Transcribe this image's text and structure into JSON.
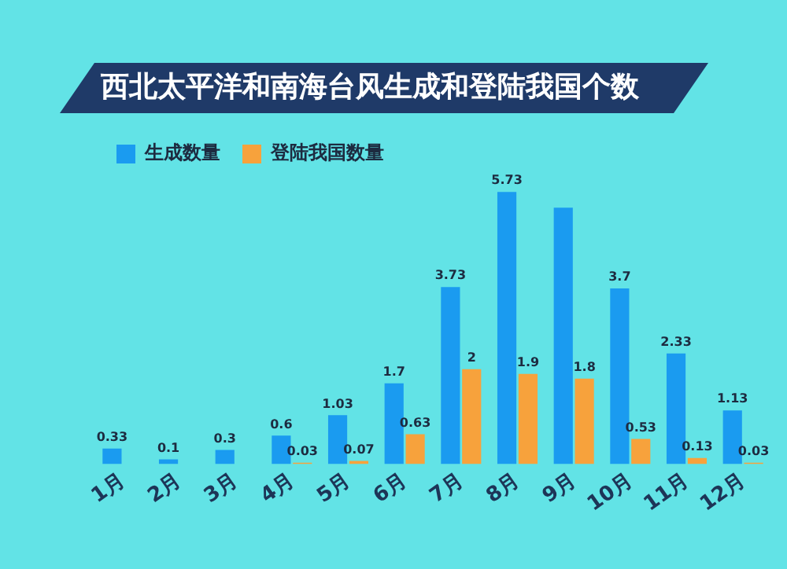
{
  "chart_data": {
    "type": "bar",
    "title": "西北太平洋和南海台风生成和登陆我国个数",
    "categories": [
      "1月",
      "2月",
      "3月",
      "4月",
      "5月",
      "6月",
      "7月",
      "8月",
      "9月",
      "10月",
      "11月",
      "12月"
    ],
    "series": [
      {
        "name": "生成数量",
        "color": "#1a9bf0",
        "values": [
          0.33,
          0.1,
          0.3,
          0.6,
          1.03,
          1.7,
          3.73,
          5.73,
          5.4,
          3.7,
          2.33,
          1.13
        ],
        "value_labels": [
          "0.33",
          "0.1",
          "0.3",
          "0.6",
          "1.03",
          "1.7",
          "3.73",
          "5.73",
          null,
          "3.7",
          "2.33",
          "1.13"
        ]
      },
      {
        "name": "登陆我国数量",
        "color": "#f7a23c",
        "values": [
          null,
          null,
          null,
          0.03,
          0.07,
          0.63,
          2,
          1.9,
          1.8,
          0.53,
          0.13,
          0.03
        ],
        "value_labels": [
          null,
          null,
          null,
          "0.03",
          "0.07",
          "0.63",
          "2",
          "1.9",
          "1.8",
          "0.53",
          "0.13",
          "0.03"
        ]
      }
    ],
    "legend": "top left",
    "grid": false
  }
}
